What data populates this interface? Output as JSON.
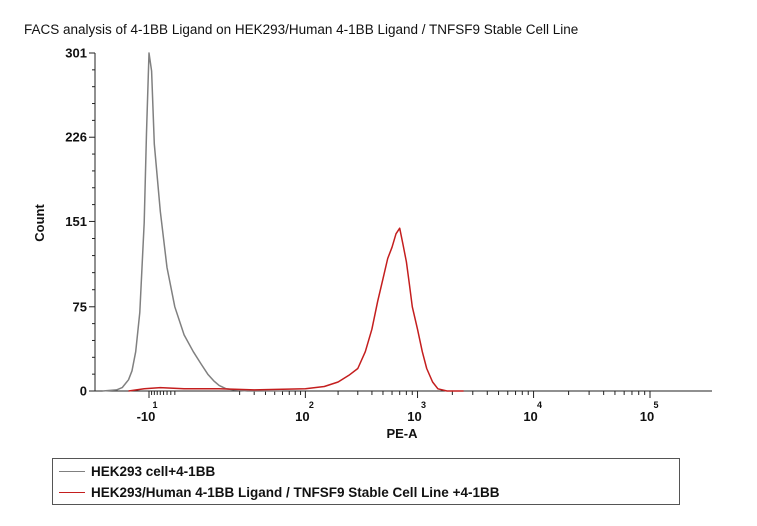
{
  "title": "FACS analysis of 4-1BB Ligand on HEK293/Human 4-1BB Ligand / TNFSF9 Stable Cell Line",
  "chart_data": {
    "type": "line",
    "title": "FACS analysis of 4-1BB Ligand on HEK293/Human 4-1BB Ligand / TNFSF9 Stable Cell Line",
    "xlabel": "PE-A",
    "ylabel": "Count",
    "x_scale": "biexponential",
    "ylim": [
      0,
      301
    ],
    "y_ticks": [
      "0",
      "75",
      "151",
      "226",
      "301"
    ],
    "x_ticks": [
      {
        "base": "-10",
        "exp": "1",
        "value": -10
      },
      {
        "base": "10",
        "exp": "2",
        "value": 100
      },
      {
        "base": "10",
        "exp": "3",
        "value": 1000
      },
      {
        "base": "10",
        "exp": "4",
        "value": 10000
      },
      {
        "base": "10",
        "exp": "5",
        "value": 100000
      }
    ],
    "legend_position": "bottom",
    "series": [
      {
        "name": "HEK293 cell+4-1BB",
        "color": "#808080",
        "points": [
          [
            -40,
            0
          ],
          [
            -28,
            1
          ],
          [
            -24,
            3
          ],
          [
            -20,
            10
          ],
          [
            -18,
            18
          ],
          [
            -16,
            35
          ],
          [
            -14,
            70
          ],
          [
            -12,
            150
          ],
          [
            -11,
            230
          ],
          [
            -10,
            301
          ],
          [
            -9,
            285
          ],
          [
            -8,
            220
          ],
          [
            -6,
            160
          ],
          [
            -4,
            110
          ],
          [
            -2,
            75
          ],
          [
            0,
            50
          ],
          [
            2,
            35
          ],
          [
            4,
            24
          ],
          [
            6,
            15
          ],
          [
            8,
            9
          ],
          [
            10,
            5
          ],
          [
            13,
            2
          ],
          [
            17,
            1
          ],
          [
            25,
            0
          ],
          [
            60,
            0
          ]
        ]
      },
      {
        "name": "HEK293/Human 4-1BB Ligand / TNFSF9 Stable Cell Line +4-1BB",
        "color": "#c41e1e",
        "points": [
          [
            -20,
            0
          ],
          [
            -12,
            2
          ],
          [
            -6,
            3
          ],
          [
            0,
            2
          ],
          [
            10,
            2
          ],
          [
            30,
            1
          ],
          [
            100,
            2
          ],
          [
            150,
            4
          ],
          [
            200,
            8
          ],
          [
            250,
            14
          ],
          [
            300,
            20
          ],
          [
            350,
            35
          ],
          [
            400,
            55
          ],
          [
            450,
            80
          ],
          [
            500,
            100
          ],
          [
            550,
            118
          ],
          [
            600,
            128
          ],
          [
            650,
            140
          ],
          [
            700,
            145
          ],
          [
            750,
            130
          ],
          [
            800,
            115
          ],
          [
            850,
            95
          ],
          [
            900,
            75
          ],
          [
            1000,
            55
          ],
          [
            1100,
            35
          ],
          [
            1200,
            20
          ],
          [
            1350,
            8
          ],
          [
            1500,
            2
          ],
          [
            1800,
            0
          ],
          [
            2500,
            0
          ]
        ]
      }
    ]
  }
}
